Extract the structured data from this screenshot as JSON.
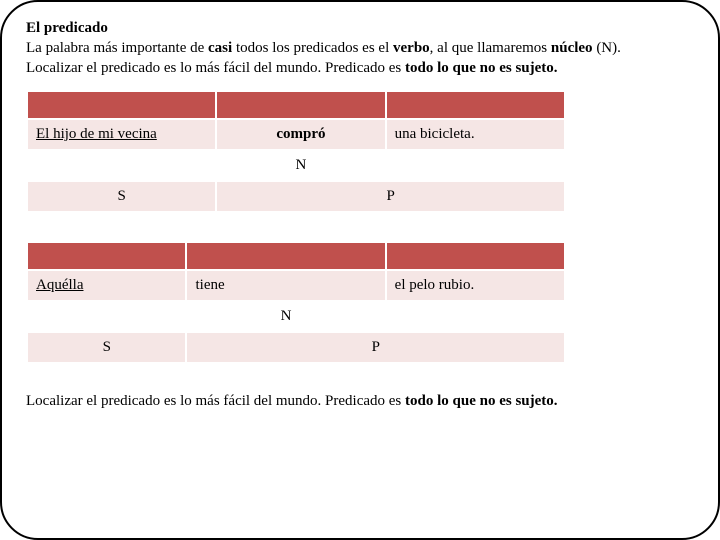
{
  "title": "El predicado",
  "intro_parts": {
    "p1a": "La palabra más importante de ",
    "p1b": "casi",
    "p1c": " todos los predicados es el ",
    "p1d": "verbo",
    "p1e": ", al que llamaremos ",
    "p1f": "núcleo",
    "p1g": " (N).",
    "p2a": "Localizar el predicado es lo más fácil del mundo. Predicado es ",
    "p2b": "todo lo que no es sujeto."
  },
  "table1": {
    "row1": {
      "c1": "El hijo de mi vecina",
      "c2": "compró",
      "c3": "una bicicleta."
    },
    "row2": {
      "c2": "N"
    },
    "row3": {
      "c1": "S",
      "c2": "P"
    },
    "col_widths": [
      "190px",
      "170px",
      "180px"
    ]
  },
  "table2": {
    "row1": {
      "c1": "Aquélla",
      "c2": "tiene",
      "c3": "el pelo rubio."
    },
    "row2": {
      "c2": "N"
    },
    "row3": {
      "c1": "S",
      "c2": "P"
    },
    "col_widths": [
      "160px",
      "200px",
      "180px"
    ]
  },
  "footer_parts": {
    "a": "Localizar el predicado es lo más fácil del mundo. Predicado es ",
    "b": "todo lo que no es sujeto."
  },
  "colors": {
    "header_bg": "#c0504d",
    "light_bg": "#f5e6e5",
    "border": "#000000"
  }
}
